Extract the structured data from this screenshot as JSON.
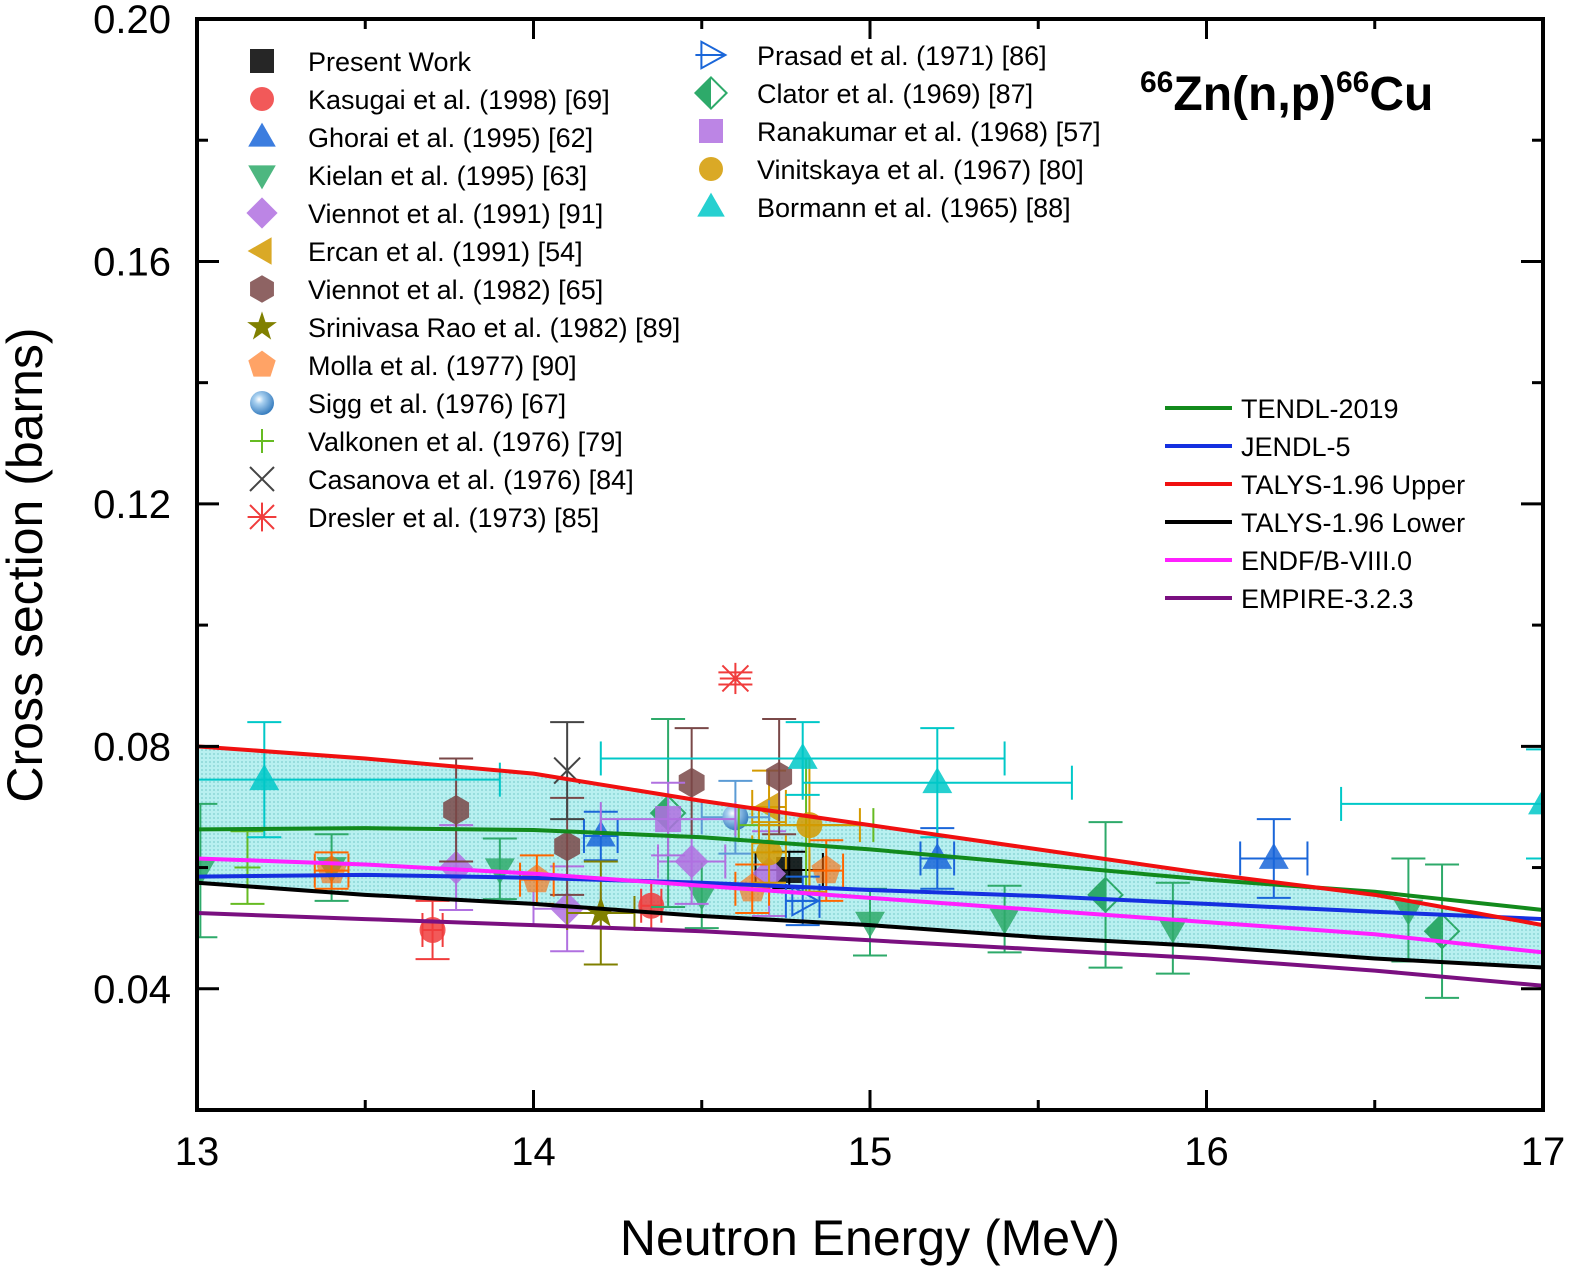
{
  "chart_data": {
    "type": "scatter",
    "title": "66Zn(n,p)66Cu",
    "title_parts": {
      "sup1": "66",
      "main1": "Zn(n,p)",
      "sup2": "66",
      "main2": "Cu"
    },
    "xlabel": "Neutron Energy (MeV)",
    "ylabel": "Cross section (barns)",
    "xlim": [
      13,
      17
    ],
    "ylim": [
      0.02,
      0.2
    ],
    "xticks": [
      13,
      14,
      15,
      16,
      17
    ],
    "xtick_labels": [
      "13",
      "14",
      "15",
      "16",
      "17"
    ],
    "yticks": [
      0.04,
      0.08,
      0.12,
      0.16,
      0.2
    ],
    "ytick_labels": [
      "0.04",
      "0.08",
      "0.12",
      "0.16",
      "0.20"
    ],
    "yminor": [
      0.06,
      0.1,
      0.14,
      0.18
    ],
    "xminor": [
      13.5,
      14.5,
      15.5,
      16.5
    ],
    "grid": false,
    "band": {
      "between": [
        "TALYS-1.96 Lower",
        "TALYS-1.96 Upper"
      ],
      "color": "#9fe6e6"
    },
    "series": [
      {
        "name": "Present Work",
        "marker": "square",
        "color": "#000000",
        "points": [
          [
            14.76,
            0.0596,
            0.1,
            0.003
          ]
        ]
      },
      {
        "name": "Kasugai et al. (1998) [69]",
        "marker": "circle",
        "color": "#f03c3c",
        "points": [
          [
            13.7,
            0.0497,
            0.03,
            0.0048
          ],
          [
            14.35,
            0.0537,
            0.03,
            0.004
          ]
        ]
      },
      {
        "name": "Ghorai et al. (1995) [62]",
        "marker": "triangle-up",
        "color": "#1a66d9",
        "points": [
          [
            14.2,
            0.0652,
            0.05,
            0.004
          ],
          [
            15.2,
            0.0615,
            0.05,
            0.005
          ],
          [
            16.2,
            0.0615,
            0.1,
            0.0065
          ]
        ]
      },
      {
        "name": "Kielan et al. (1995) [63]",
        "marker": "triangle-down",
        "color": "#2eaa6a",
        "points": [
          [
            13.01,
            0.0595,
            0.0,
            0.011
          ],
          [
            13.4,
            0.06,
            0.0,
            0.0055
          ],
          [
            13.9,
            0.0598,
            0.0,
            0.005
          ],
          [
            14.5,
            0.0555,
            0.0,
            0.0055
          ],
          [
            15.0,
            0.051,
            0.0,
            0.0055
          ],
          [
            15.4,
            0.0515,
            0.0,
            0.0055
          ],
          [
            15.9,
            0.05,
            0.0,
            0.0075
          ],
          [
            16.6,
            0.053,
            0.0,
            0.0085
          ]
        ]
      },
      {
        "name": "Viennot et al. (1991) [91]",
        "marker": "diamond",
        "color": "#b070e0",
        "points": [
          [
            13.77,
            0.06,
            0.0,
            0.007
          ],
          [
            14.1,
            0.0532,
            0.1,
            0.007
          ],
          [
            14.47,
            0.061,
            0.1,
            0.007
          ],
          [
            14.7,
            0.059,
            0.0,
            0.007
          ]
        ]
      },
      {
        "name": "Ercan et al. (1991) [54]",
        "marker": "triangle-left",
        "color": "#d49a00",
        "points": [
          [
            14.7,
            0.07,
            0.05,
            0.006
          ]
        ]
      },
      {
        "name": "Viennot et al. (1982) [65]",
        "marker": "hexagon",
        "color": "#7a4848",
        "points": [
          [
            13.77,
            0.0695,
            0.0,
            0.0085
          ],
          [
            14.1,
            0.0635,
            0.0,
            0.008
          ],
          [
            14.47,
            0.074,
            0.0,
            0.009
          ],
          [
            14.73,
            0.075,
            0.0,
            0.0095
          ]
        ]
      },
      {
        "name": "Srinivasa Rao et al. (1982) [89]",
        "marker": "star",
        "color": "#808000",
        "points": [
          [
            14.2,
            0.0525,
            0.1,
            0.0085
          ]
        ]
      },
      {
        "name": "Molla et al. (1977) [90]",
        "marker": "pentagon",
        "color": "#ff6600",
        "points": [
          [
            13.4,
            0.0595,
            0.05,
            0.003
          ],
          [
            14.01,
            0.058,
            0.05,
            0.004
          ],
          [
            14.65,
            0.0565,
            0.05,
            0.004
          ],
          [
            14.87,
            0.0595,
            0.05,
            0.005
          ]
        ]
      },
      {
        "name": "Sigg et al. (1976) [67]",
        "marker": "sphere",
        "color": "#5b9bd5",
        "points": [
          [
            14.6,
            0.0683,
            0.1,
            0.006
          ]
        ]
      },
      {
        "name": "Valkonen et al. (1976) [79]",
        "marker": "plus",
        "color": "#66bb22",
        "points": [
          [
            13.15,
            0.06,
            0.0,
            0.006
          ],
          [
            14.81,
            0.067,
            0.2,
            0.011
          ]
        ]
      },
      {
        "name": "Casanova et al. (1976) [84]",
        "marker": "x",
        "color": "#444444",
        "points": [
          [
            14.1,
            0.076,
            0.0,
            0.008
          ]
        ]
      },
      {
        "name": "Dresler et al. (1973) [85]",
        "marker": "asterisk",
        "color": "#f03c3c",
        "points": [
          [
            14.6,
            0.0912,
            0.0,
            0.001
          ]
        ]
      },
      {
        "name": "Prasad et al. (1971) [86]",
        "marker": "triangle-right-open",
        "color": "#1a66d9",
        "points": [
          [
            14.8,
            0.0545,
            0.05,
            0.004
          ]
        ]
      },
      {
        "name": "Clator et al. (1969) [87]",
        "marker": "half-diamond",
        "color": "#2eaa6a",
        "points": [
          [
            14.4,
            0.069,
            0.0,
            0.0155
          ],
          [
            15.7,
            0.0555,
            0.0,
            0.012
          ],
          [
            16.7,
            0.0495,
            0.0,
            0.011
          ]
        ]
      },
      {
        "name": "Ranakumar et al. (1968) [57]",
        "marker": "square",
        "color": "#b070e0",
        "points": [
          [
            14.4,
            0.068,
            0.2,
            0.006
          ]
        ]
      },
      {
        "name": "Vinitskaya et al. (1967) [80]",
        "marker": "circle",
        "color": "#d49a00",
        "points": [
          [
            14.7,
            0.0625,
            0.05,
            0.005
          ],
          [
            14.82,
            0.067,
            0.15,
            0.011
          ]
        ]
      },
      {
        "name": "Bormann et al. (1965) [88]",
        "marker": "triangle-up",
        "color": "#00c8c8",
        "points": [
          [
            13.2,
            0.0745,
            0.7,
            0.0095
          ],
          [
            14.8,
            0.078,
            0.6,
            0.006
          ],
          [
            15.2,
            0.074,
            0.4,
            0.009
          ],
          [
            17.0,
            0.0705,
            0.6,
            0.009
          ]
        ]
      }
    ],
    "curves": [
      {
        "name": "TENDL-2019",
        "color": "#128a1c",
        "x": [
          13,
          13.5,
          14,
          14.5,
          15,
          15.5,
          16,
          16.5,
          17
        ],
        "y": [
          0.0663,
          0.0665,
          0.0662,
          0.065,
          0.063,
          0.0605,
          0.058,
          0.056,
          0.053
        ]
      },
      {
        "name": "JENDL-5",
        "color": "#1530e0",
        "x": [
          13,
          13.5,
          14,
          14.5,
          15,
          15.5,
          16,
          16.5,
          17
        ],
        "y": [
          0.0585,
          0.0588,
          0.0583,
          0.0575,
          0.0563,
          0.0553,
          0.054,
          0.0527,
          0.0515
        ]
      },
      {
        "name": "TALYS-1.96 Upper",
        "color": "#f01010",
        "x": [
          13,
          13.5,
          14,
          14.5,
          15,
          15.5,
          16,
          16.5,
          17
        ],
        "y": [
          0.08,
          0.078,
          0.0755,
          0.071,
          0.067,
          0.063,
          0.059,
          0.0555,
          0.0505
        ]
      },
      {
        "name": "TALYS-1.96 Lower",
        "color": "#000000",
        "x": [
          13,
          13.5,
          14,
          14.5,
          15,
          15.5,
          16,
          16.5,
          17
        ],
        "y": [
          0.0575,
          0.0555,
          0.054,
          0.052,
          0.0505,
          0.0485,
          0.047,
          0.045,
          0.0435
        ]
      },
      {
        "name": "ENDF/B-VIII.0",
        "color": "#ff20ff",
        "x": [
          13,
          13.5,
          14,
          14.5,
          15,
          15.5,
          16,
          16.5,
          17
        ],
        "y": [
          0.0615,
          0.0605,
          0.059,
          0.057,
          0.055,
          0.053,
          0.051,
          0.049,
          0.046
        ]
      },
      {
        "name": "EMPIRE-3.2.3",
        "color": "#7a1080",
        "x": [
          13,
          13.5,
          14,
          14.5,
          15,
          15.5,
          16,
          16.5,
          17
        ],
        "y": [
          0.0525,
          0.0515,
          0.0505,
          0.0495,
          0.048,
          0.0465,
          0.045,
          0.043,
          0.0405
        ]
      }
    ],
    "legend_experimental_col1": [
      "Present Work",
      "Kasugai et al. (1998) [69]",
      "Ghorai et al. (1995) [62]",
      "Kielan et al. (1995) [63]",
      "Viennot et al. (1991) [91]",
      "Ercan et al. (1991) [54]",
      "Viennot et al. (1982) [65]",
      "Srinivasa Rao et al. (1982) [89]",
      "Molla et al. (1977) [90]",
      "Sigg et al. (1976) [67]",
      "Valkonen et al. (1976) [79]",
      "Casanova et al. (1976) [84]",
      "Dresler et al. (1973) [85]"
    ],
    "legend_experimental_col2": [
      "Prasad et al. (1971) [86]",
      "Clator et al. (1969) [87]",
      "Ranakumar et al. (1968) [57]",
      "Vinitskaya et al. (1967) [80]",
      "Bormann et al. (1965) [88]"
    ],
    "legend_placement": "top-left (experimental), center-right (evaluations)"
  }
}
